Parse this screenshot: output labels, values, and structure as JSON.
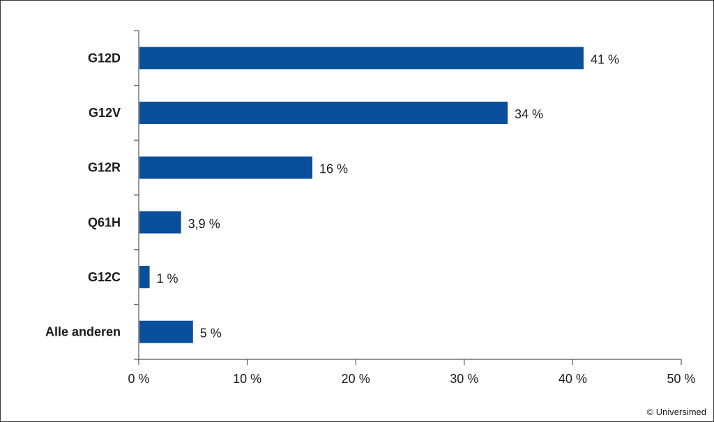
{
  "chart_data": {
    "type": "bar",
    "orientation": "horizontal",
    "categories": [
      "G12D",
      "G12V",
      "G12R",
      "Q61H",
      "G12C",
      "Alle anderen"
    ],
    "values": [
      41,
      34,
      16,
      3.9,
      1,
      5
    ],
    "value_labels": [
      "41 %",
      "34 %",
      "16 %",
      "3,9 %",
      "1 %",
      "5 %"
    ],
    "xlim": [
      0,
      50
    ],
    "x_ticks": [
      0,
      10,
      20,
      30,
      40,
      50
    ],
    "x_tick_labels": [
      "0 %",
      "10 %",
      "20 %",
      "30 %",
      "40 %",
      "50 %"
    ],
    "title": "",
    "xlabel": "",
    "ylabel": "",
    "grid": false,
    "bar_color": "#0a4f9c"
  },
  "credit": "© Universimed"
}
